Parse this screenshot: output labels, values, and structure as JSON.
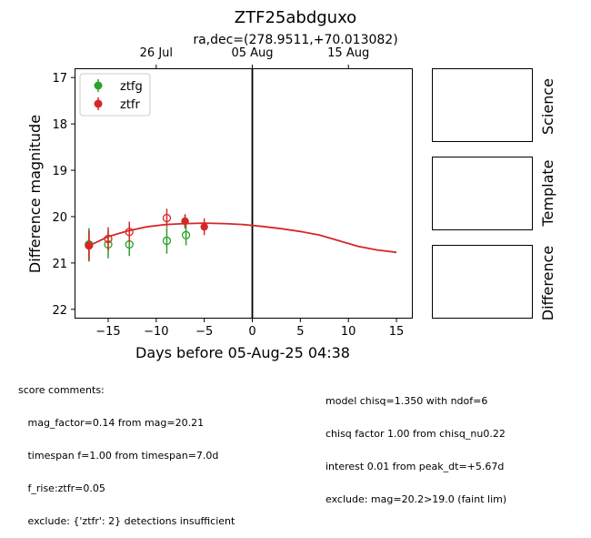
{
  "chart_data": {
    "type": "scatter",
    "title": "ZTF25abdguxo",
    "subtitle": "ra,dec=(278.9511,+70.013082)",
    "xlabel": "Days before 05-Aug-25 04:38",
    "ylabel": "Difference magnitude",
    "xlim": [
      -18.5,
      16.7
    ],
    "ylim": [
      22.2,
      16.8
    ],
    "y_inverted": true,
    "x_ticks": [
      -15,
      -10,
      -5,
      0,
      5,
      10,
      15
    ],
    "x_tick_labels": [
      "−15",
      "−10",
      "−5",
      "0",
      "5",
      "10",
      "15"
    ],
    "y_ticks": [
      17,
      18,
      19,
      20,
      21,
      22
    ],
    "y_tick_labels": [
      "17",
      "18",
      "19",
      "20",
      "21",
      "22"
    ],
    "top_axis_ticks": [
      {
        "label": "26 Jul",
        "x": -10
      },
      {
        "label": "05 Aug",
        "x": 0
      },
      {
        "label": "15 Aug",
        "x": 10
      }
    ],
    "vline_x": 0,
    "legend": {
      "placement": "top-left",
      "entries": [
        "ztfg",
        "ztfr"
      ]
    },
    "series": [
      {
        "name": "ztfg",
        "color": "#2ca02c",
        "detections": [
          {
            "x": -17.0,
            "y": 20.62,
            "err": 0.35
          },
          {
            "x": -7.0,
            "y": 20.1,
            "err": 0.15
          }
        ],
        "open_points": [
          {
            "x": -17.0,
            "y": 20.6,
            "err": 0.35
          },
          {
            "x": -15.0,
            "y": 20.6,
            "err": 0.3
          },
          {
            "x": -12.8,
            "y": 20.6,
            "err": 0.25
          },
          {
            "x": -8.9,
            "y": 20.52,
            "err": 0.28
          },
          {
            "x": -6.9,
            "y": 20.4,
            "err": 0.22
          }
        ]
      },
      {
        "name": "ztfr",
        "color": "#d62728",
        "detections": [
          {
            "x": -17.0,
            "y": 20.63,
            "err": 0.32
          },
          {
            "x": -7.0,
            "y": 20.1,
            "err": 0.15
          },
          {
            "x": -5.0,
            "y": 20.22,
            "err": 0.18
          }
        ],
        "open_points": [
          {
            "x": -17.0,
            "y": 20.62,
            "err": 0.3
          },
          {
            "x": -15.0,
            "y": 20.48,
            "err": 0.25
          },
          {
            "x": -12.8,
            "y": 20.33,
            "err": 0.22
          },
          {
            "x": -8.9,
            "y": 20.03,
            "err": 0.2
          }
        ]
      }
    ],
    "model_curve": {
      "color": "#d62728",
      "x": [
        -17,
        -15,
        -13,
        -11,
        -9,
        -7,
        -5,
        -3,
        -1,
        1,
        3,
        5,
        7,
        9,
        11,
        13,
        15
      ],
      "y": [
        20.63,
        20.43,
        20.31,
        20.22,
        20.17,
        20.15,
        20.14,
        20.15,
        20.17,
        20.21,
        20.26,
        20.32,
        20.4,
        20.52,
        20.64,
        20.72,
        20.77
      ]
    }
  },
  "side_panels": [
    "Science",
    "Template",
    "Difference"
  ],
  "comments_left": [
    "score comments:",
    "   mag_factor=0.14 from mag=20.21",
    "   timespan f=1.00 from timespan=7.0d",
    "   f_rise:ztfr=0.05",
    "   exclude: {'ztfr': 2} detections insufficient"
  ],
  "comments_right": [
    "model chisq=1.350 with ndof=6",
    "chisq factor 1.00 from chisq_nu0.22",
    "interest 0.01 from peak_dt=+5.67d",
    "exclude: mag=20.2>19.0 (faint lim)"
  ]
}
